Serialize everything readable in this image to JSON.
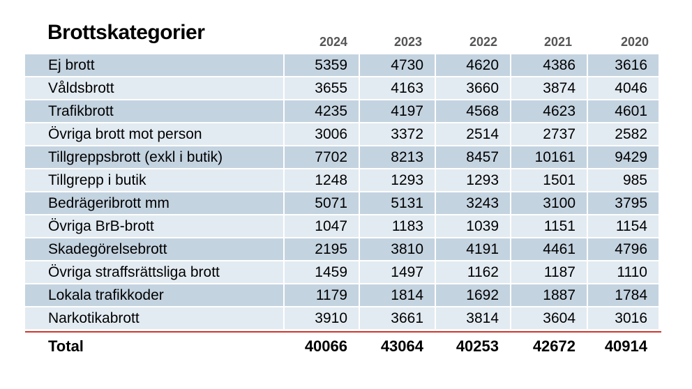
{
  "title": "Brottskategorier",
  "years": [
    "2024",
    "2023",
    "2022",
    "2021",
    "2020"
  ],
  "rows": [
    {
      "label": "Ej brott",
      "values": [
        "5359",
        "4730",
        "4620",
        "4386",
        "3616"
      ]
    },
    {
      "label": "Våldsbrott",
      "values": [
        "3655",
        "4163",
        "3660",
        "3874",
        "4046"
      ]
    },
    {
      "label": "Trafikbrott",
      "values": [
        "4235",
        "4197",
        "4568",
        "4623",
        "4601"
      ]
    },
    {
      "label": "Övriga brott mot person",
      "values": [
        "3006",
        "3372",
        "2514",
        "2737",
        "2582"
      ]
    },
    {
      "label": "Tillgreppsbrott (exkl i butik)",
      "values": [
        "7702",
        "8213",
        "8457",
        "10161",
        "9429"
      ]
    },
    {
      "label": "Tillgrepp i butik",
      "values": [
        "1248",
        "1293",
        "1293",
        "1501",
        "985"
      ]
    },
    {
      "label": "Bedrägeribrott mm",
      "values": [
        "5071",
        "5131",
        "3243",
        "3100",
        "3795"
      ]
    },
    {
      "label": "Övriga BrB-brott",
      "values": [
        "1047",
        "1183",
        "1039",
        "1151",
        "1154"
      ]
    },
    {
      "label": "Skadegörelsebrott",
      "values": [
        "2195",
        "3810",
        "4191",
        "4461",
        "4796"
      ]
    },
    {
      "label": "Övriga straffsrättsliga brott",
      "values": [
        "1459",
        "1497",
        "1162",
        "1187",
        "1110"
      ]
    },
    {
      "label": "Lokala trafikkoder",
      "values": [
        "1179",
        "1814",
        "1692",
        "1887",
        "1784"
      ]
    },
    {
      "label": "Narkotikabrott",
      "values": [
        "3910",
        "3661",
        "3814",
        "3604",
        "3016"
      ]
    }
  ],
  "total": {
    "label": "Total",
    "values": [
      "40066",
      "43064",
      "40253",
      "42672",
      "40914"
    ]
  },
  "colors": {
    "row_dark": "#c4d3e0",
    "row_light": "#e3ebf2",
    "divider": "#d0352c",
    "year_text": "#555555"
  }
}
